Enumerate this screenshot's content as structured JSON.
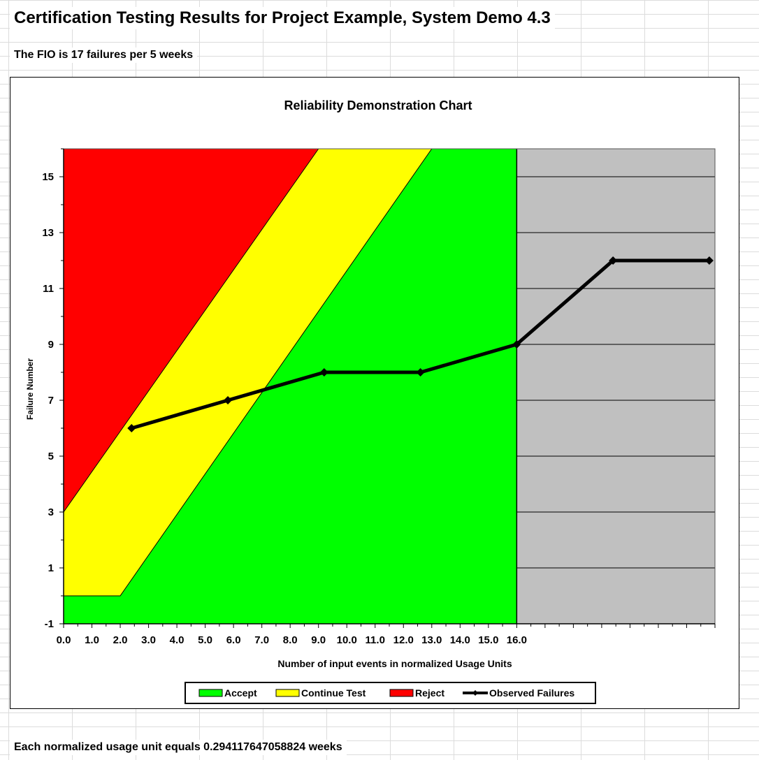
{
  "sheet": {
    "title": "Certification Testing Results for Project Example, System Demo 4.3",
    "fio_text": "The FIO is 17 failures per 5 weeks",
    "footer_text": "Each normalized usage unit equals 0.294117647058824 weeks"
  },
  "chart_data": {
    "type": "line",
    "title": "Reliability Demonstration Chart",
    "xlabel": "Number of input events in normalized Usage Units",
    "ylabel": "Failure Number",
    "xlim": [
      0,
      23
    ],
    "ylim": [
      -1,
      16
    ],
    "x_tick_labels": [
      "0.0",
      "1.0",
      "2.0",
      "3.0",
      "4.0",
      "5.0",
      "6.0",
      "7.0",
      "8.0",
      "9.0",
      "10.0",
      "11.0",
      "12.0",
      "13.0",
      "14.0",
      "15.0",
      "16.0"
    ],
    "y_tick_labels": [
      "-1",
      "1",
      "3",
      "5",
      "7",
      "9",
      "11",
      "13",
      "15"
    ],
    "grid": true,
    "legend_position": "bottom",
    "regions": [
      {
        "name": "Accept",
        "color": "#00ff00"
      },
      {
        "name": "Continue Test",
        "color": "#ffff00"
      },
      {
        "name": "Reject",
        "color": "#ff0000"
      }
    ],
    "beyond_color": "#c0c0c0",
    "reject_boundary": {
      "x": [
        0,
        9.0
      ],
      "y": [
        3,
        16
      ]
    },
    "accept_boundary": {
      "x": [
        0,
        2.0,
        13.0
      ],
      "y": [
        0,
        0,
        16
      ]
    },
    "accept_region_end_x": 16.0,
    "series": [
      {
        "name": "Observed Failures",
        "color": "#000000",
        "x": [
          2.4,
          5.8,
          9.2,
          12.6,
          16.0,
          19.4,
          22.8
        ],
        "y": [
          6,
          7,
          8,
          8,
          9,
          12,
          12
        ]
      }
    ]
  }
}
